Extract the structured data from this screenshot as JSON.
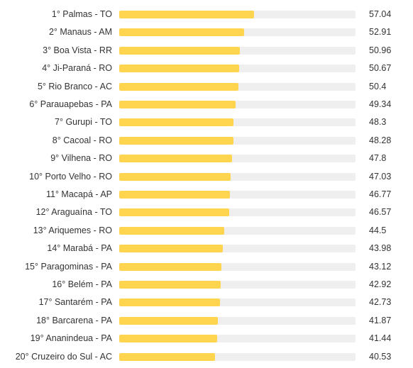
{
  "chart_data": {
    "type": "bar",
    "orientation": "horizontal",
    "categories": [
      "1° Palmas - TO",
      "2° Manaus - AM",
      "3° Boa Vista - RR",
      "4° Ji-Paraná - RO",
      "5° Rio Branco - AC",
      "6° Parauapebas - PA",
      "7° Gurupi - TO",
      "8° Cacoal - RO",
      "9° Vilhena - RO",
      "10° Porto Velho - RO",
      "11° Macapá - AP",
      "12° Araguaína - TO",
      "13° Ariquemes - RO",
      "14° Marabá - PA",
      "15° Paragominas - PA",
      "16° Belém - PA",
      "17° Santarém - PA",
      "18° Barcarena - PA",
      "19° Ananindeua - PA",
      "20° Cruzeiro do Sul - AC"
    ],
    "values": [
      57.04,
      52.91,
      50.96,
      50.67,
      50.4,
      49.34,
      48.3,
      48.28,
      47.8,
      47.03,
      46.77,
      46.57,
      44.5,
      43.98,
      43.12,
      42.92,
      42.73,
      41.87,
      41.44,
      40.53
    ],
    "value_labels": [
      "57.04",
      "52.91",
      "50.96",
      "50.67",
      "50.4",
      "49.34",
      "48.3",
      "48.28",
      "47.8",
      "47.03",
      "46.77",
      "46.57",
      "44.5",
      "43.98",
      "43.12",
      "42.92",
      "42.73",
      "41.87",
      "41.44",
      "40.53"
    ],
    "xlim": [
      0,
      100
    ],
    "grid": false,
    "colors": {
      "bar": "#ffd54f",
      "track": "#efefef",
      "text": "#333333"
    }
  }
}
